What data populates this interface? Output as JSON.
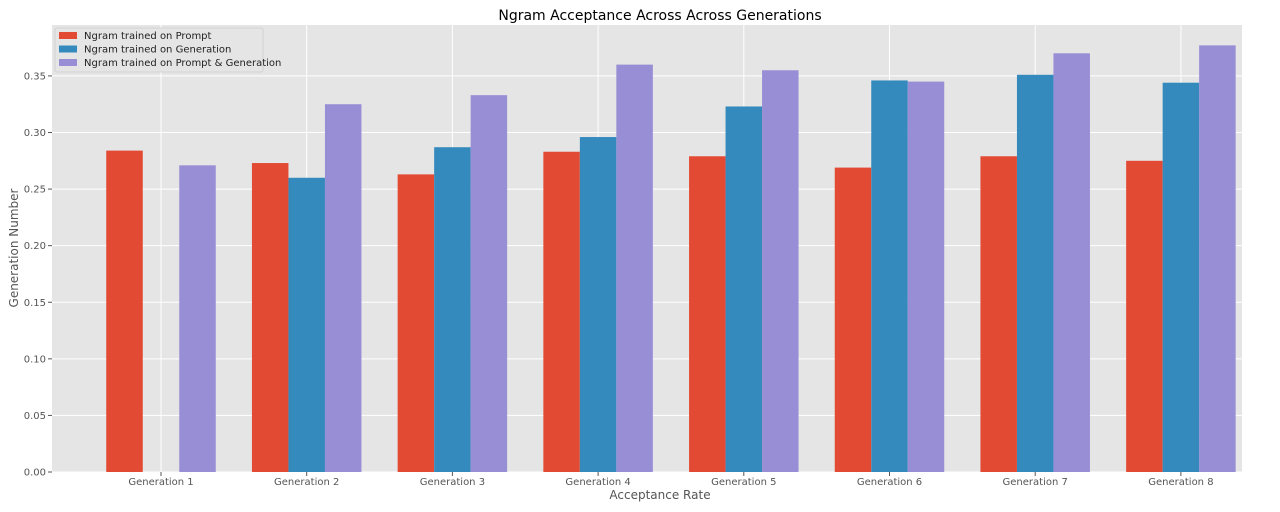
{
  "chart_data": {
    "type": "bar",
    "title": "Ngram Acceptance Across Across Generations",
    "xlabel": "Acceptance Rate",
    "ylabel": "Generation Number",
    "categories": [
      "Generation 1",
      "Generation 2",
      "Generation 3",
      "Generation 4",
      "Generation 5",
      "Generation 6",
      "Generation 7",
      "Generation 8"
    ],
    "ylim": [
      0,
      0.395
    ],
    "yticks": [
      0.0,
      0.05,
      0.1,
      0.15,
      0.2,
      0.25,
      0.3,
      0.35
    ],
    "ytick_labels": [
      "0.00",
      "0.05",
      "0.10",
      "0.15",
      "0.20",
      "0.25",
      "0.30",
      "0.35"
    ],
    "grid": true,
    "legend_position": "top-left",
    "series": [
      {
        "name": "Ngram trained on Prompt",
        "color": "#E24A33",
        "values": [
          0.284,
          0.273,
          0.263,
          0.283,
          0.279,
          0.269,
          0.279,
          0.275
        ]
      },
      {
        "name": "Ngram trained on Generation",
        "color": "#348ABD",
        "values": [
          null,
          0.26,
          0.287,
          0.296,
          0.323,
          0.346,
          0.351,
          0.344
        ]
      },
      {
        "name": "Ngram trained on Prompt & Generation",
        "color": "#988ED5",
        "values": [
          0.271,
          0.325,
          0.333,
          0.36,
          0.355,
          0.345,
          0.37,
          0.377
        ]
      }
    ]
  }
}
